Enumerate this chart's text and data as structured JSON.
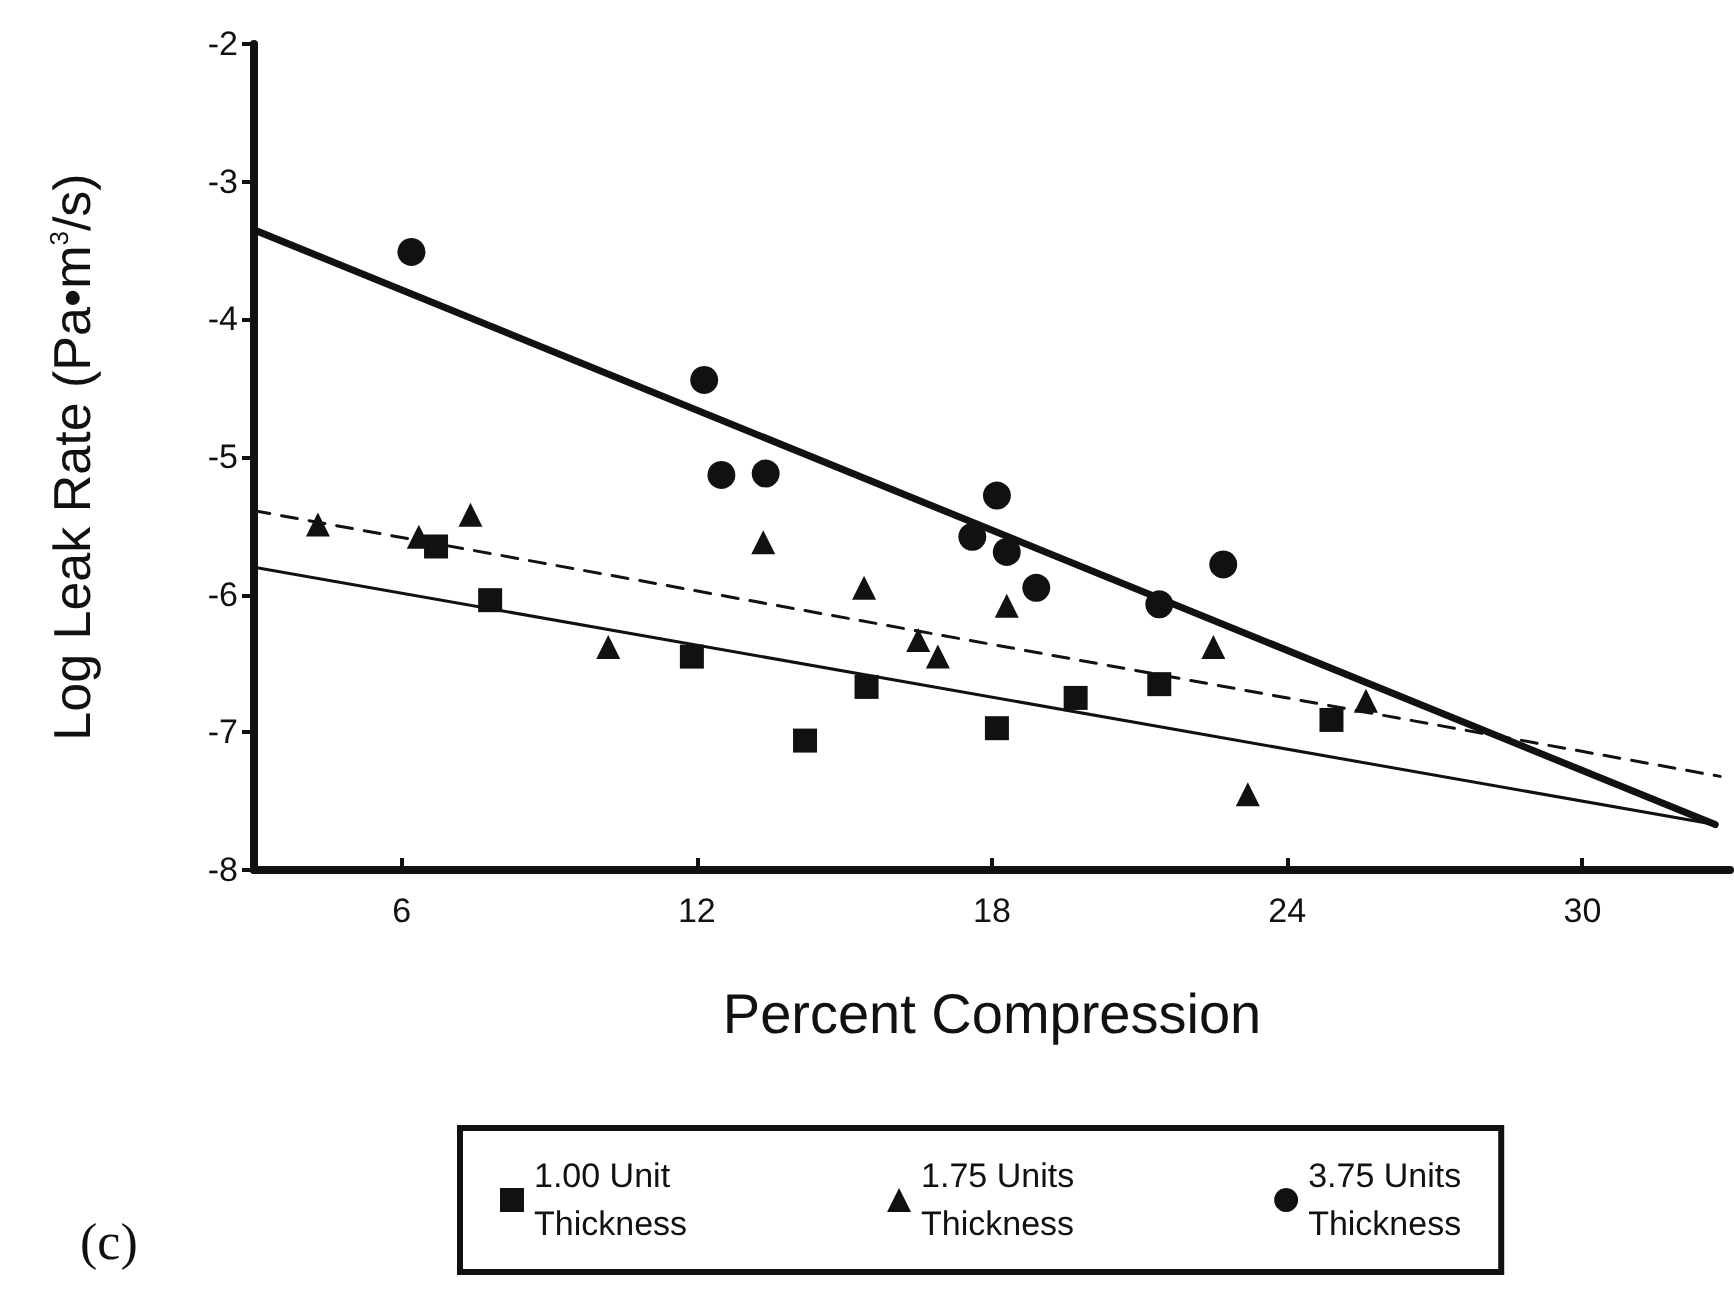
{
  "chart_data": {
    "type": "scatter",
    "xlabel": "Percent Compression",
    "ylabel": "Log Leak Rate (Pa•m$^{3}$/s)",
    "xlim": [
      3,
      33
    ],
    "xticks": [
      6,
      12,
      18,
      24,
      30
    ],
    "ylim": [
      -8,
      -2
    ],
    "yticks": [
      -8,
      -7,
      -6,
      -5,
      -4,
      -3,
      -2
    ],
    "grid": false,
    "legend": "bottom",
    "annotations": [
      "(c)"
    ],
    "series": [
      {
        "name": "1.00 Unit\nThickness",
        "color": "#111111",
        "marker": "square",
        "x": [
          6.7,
          7.8,
          11.9,
          14.2,
          15.45,
          18.1,
          19.7,
          21.4,
          24.9
        ],
        "values": [
          -5.65,
          -6.04,
          -6.45,
          -7.06,
          -6.67,
          -6.97,
          -6.75,
          -6.65,
          -6.91
        ]
      },
      {
        "name": "1.75 Units\nThickness",
        "color": "#111111",
        "marker": "triangle",
        "x": [
          4.3,
          6.35,
          7.4,
          10.2,
          13.35,
          15.4,
          16.5,
          16.9,
          18.3,
          22.5,
          23.2,
          25.6
        ],
        "values": [
          -5.49,
          -5.58,
          -5.42,
          -6.38,
          -5.62,
          -5.95,
          -6.33,
          -6.45,
          -6.08,
          -6.38,
          -7.45,
          -6.77
        ]
      },
      {
        "name": "3.75 Units\nThickness",
        "color": "#111111",
        "marker": "circle",
        "x": [
          6.2,
          12.15,
          12.5,
          13.4,
          18.1,
          17.6,
          18.3,
          18.9,
          21.4,
          22.7
        ],
        "values": [
          -3.51,
          -4.44,
          -5.13,
          -5.12,
          -5.28,
          -5.58,
          -5.69,
          -5.95,
          -6.07,
          -5.78
        ]
      },
      {
        "type": "line",
        "color": "#111111",
        "line_style": "solid",
        "marker": "none",
        "x": [
          3,
          32.7
        ],
        "values": [
          -5.8,
          -7.67
        ]
      },
      {
        "type": "line",
        "color": "#111111",
        "line_style": "dashed",
        "marker": "none",
        "x": [
          3,
          32.8
        ],
        "values": [
          -5.39,
          -7.32
        ]
      },
      {
        "type": "line",
        "color": "#111111",
        "line_style": "solid",
        "marker": "none",
        "x": [
          3,
          32.7
        ],
        "values": [
          -3.35,
          -7.67
        ]
      }
    ]
  }
}
